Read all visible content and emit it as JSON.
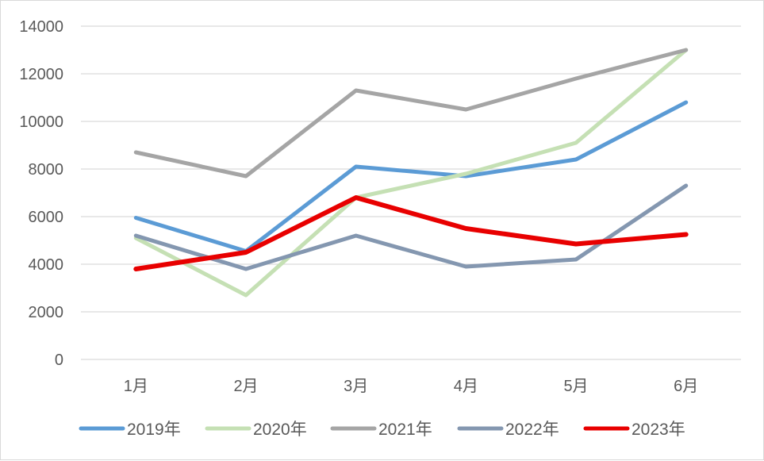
{
  "chart_data": {
    "type": "line",
    "title": "",
    "xlabel": "",
    "ylabel": "",
    "categories": [
      "1月",
      "2月",
      "3月",
      "4月",
      "5月",
      "6月"
    ],
    "ylim": [
      0,
      14000
    ],
    "yticks": [
      "0",
      "2000",
      "4000",
      "6000",
      "8000",
      "10000",
      "12000",
      "14000"
    ],
    "grid": true,
    "legend_position": "bottom",
    "series": [
      {
        "name": "2019年",
        "color": "#5b9bd5",
        "values": [
          5950,
          4550,
          8100,
          7700,
          8400,
          10800
        ]
      },
      {
        "name": "2020年",
        "color": "#c5e0b4",
        "values": [
          5100,
          2700,
          6800,
          7800,
          9100,
          13000
        ]
      },
      {
        "name": "2021年",
        "color": "#a5a5a5",
        "values": [
          8700,
          7700,
          11300,
          10500,
          11800,
          13000
        ]
      },
      {
        "name": "2022年",
        "color": "#8497b0",
        "values": [
          5200,
          3800,
          5200,
          3900,
          4200,
          7300
        ]
      },
      {
        "name": "2023年",
        "color": "#e80000",
        "values": [
          3800,
          4500,
          6800,
          5500,
          4850,
          5250
        ]
      }
    ]
  }
}
